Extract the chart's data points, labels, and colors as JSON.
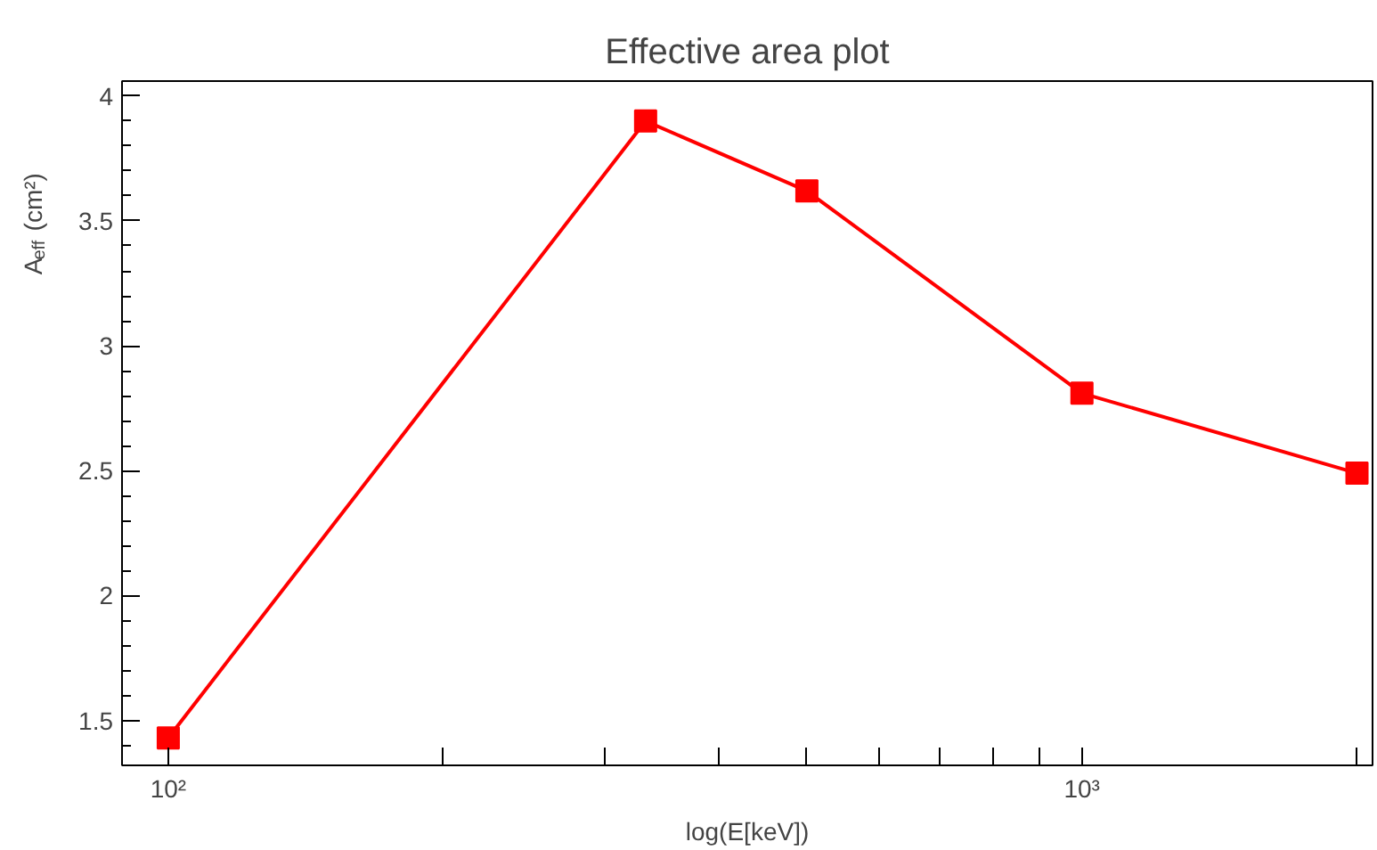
{
  "chart_data": {
    "type": "line",
    "title": "Effective area plot",
    "xlabel": "log(E[keV])",
    "ylabel": "A$_{eff}$ (cm²)",
    "x": [
      100,
      333,
      500,
      1000,
      2000
    ],
    "series": [
      {
        "color": "#ff0000",
        "values": [
          1.43,
          3.9,
          3.62,
          2.81,
          2.49
        ]
      }
    ],
    "log": "x",
    "xlim": [
      89,
      2080
    ],
    "ylim": [
      1.32,
      4.06
    ],
    "xticks": [
      {
        "value": 100,
        "label": "10²"
      },
      {
        "value": 200,
        "label": null
      },
      {
        "value": 300,
        "label": null
      },
      {
        "value": 400,
        "label": null
      },
      {
        "value": 500,
        "label": null
      },
      {
        "value": 600,
        "label": null
      },
      {
        "value": 700,
        "label": null
      },
      {
        "value": 800,
        "label": null
      },
      {
        "value": 900,
        "label": null
      },
      {
        "value": 1000,
        "label": "10³"
      },
      {
        "value": 2000,
        "label": null
      }
    ],
    "yticks": [
      1.5,
      2,
      2.5,
      3,
      3.5,
      4
    ],
    "grid": false,
    "marker": "square",
    "line_style": "solid"
  }
}
